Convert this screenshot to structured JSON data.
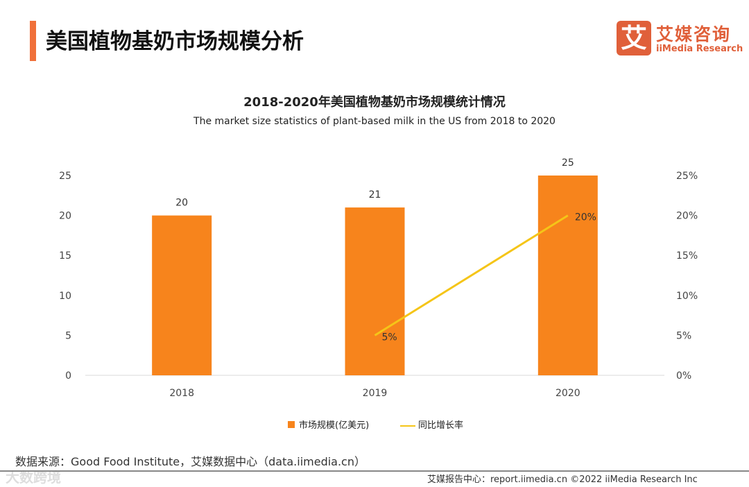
{
  "header": {
    "title": "美国植物基奶市场规模分析",
    "logo_mark": "艾",
    "logo_cn": "艾媒咨询",
    "logo_en": "iiMedia Research"
  },
  "chart_data": {
    "type": "bar",
    "title": "2018-2020年美国植物基奶市场规模统计情况",
    "subtitle": "The market size statistics of plant-based milk in the US from 2018 to 2020",
    "categories": [
      "2018",
      "2019",
      "2020"
    ],
    "series": [
      {
        "name": "市场规模(亿美元)",
        "type": "bar",
        "axis": "left",
        "values": [
          20,
          21,
          25
        ],
        "labels": [
          "20",
          "21",
          "25"
        ],
        "color": "#f7841c"
      },
      {
        "name": "同比增长率",
        "type": "line",
        "axis": "right",
        "values": [
          null,
          5,
          20
        ],
        "labels": [
          "",
          "5%",
          "20%"
        ],
        "color": "#f5c518"
      }
    ],
    "ylim": [
      0,
      25
    ],
    "y_ticks": [
      "0",
      "5",
      "10",
      "15",
      "20",
      "25"
    ],
    "y2lim": [
      0,
      25
    ],
    "y2_ticks": [
      "0%",
      "5%",
      "10%",
      "15%",
      "20%",
      "25%"
    ],
    "legend": "bottom",
    "grid": false
  },
  "footer": {
    "source": "数据来源：Good Food Institute，艾媒数据中心（data.iimedia.cn）",
    "report": "艾媒报告中心：report.iimedia.cn  ©2022  iiMedia Research  Inc",
    "watermark": "大数跨境"
  }
}
